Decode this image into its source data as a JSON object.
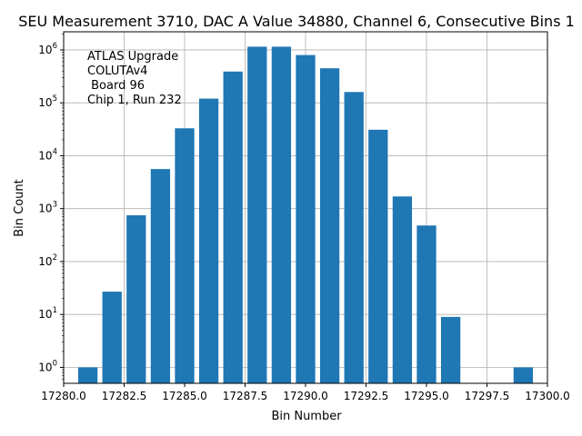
{
  "chart_data": {
    "type": "bar",
    "title": "SEU Measurement 3710, DAC A Value 34880, Channel 6, Consecutive Bins 1",
    "xlabel": "Bin Number",
    "ylabel": "Bin Count",
    "yscale": "log",
    "xlim": [
      17280,
      17300
    ],
    "ylim": [
      0.5,
      2200000
    ],
    "grid": true,
    "bar_color": "#1f77b4",
    "x": [
      17281,
      17282,
      17283,
      17284,
      17285,
      17286,
      17287,
      17288,
      17289,
      17290,
      17291,
      17292,
      17293,
      17294,
      17295,
      17296,
      17299
    ],
    "values": [
      1,
      27,
      750,
      5600,
      33000,
      120000,
      390000,
      1150000,
      1150000,
      800000,
      450000,
      160000,
      31000,
      1700,
      480,
      9,
      1
    ],
    "x_ticks": [
      17280.0,
      17282.5,
      17285.0,
      17287.5,
      17290.0,
      17292.5,
      17295.0,
      17297.5,
      17300.0
    ],
    "x_tick_labels": [
      "17280.0",
      "17282.5",
      "17285.0",
      "17287.5",
      "17290.0",
      "17292.5",
      "17295.0",
      "17297.5",
      "17300.0"
    ],
    "y_ticks": [
      1,
      10,
      100,
      1000,
      10000,
      100000,
      1000000
    ],
    "y_tick_labels": [
      {
        "base": "10",
        "exp": "0"
      },
      {
        "base": "10",
        "exp": "1"
      },
      {
        "base": "10",
        "exp": "2"
      },
      {
        "base": "10",
        "exp": "3"
      },
      {
        "base": "10",
        "exp": "4"
      },
      {
        "base": "10",
        "exp": "5"
      },
      {
        "base": "10",
        "exp": "6"
      }
    ],
    "annotation_lines": [
      "ATLAS Upgrade",
      "COLUTAv4",
      " Board 96",
      "Chip 1, Run 232"
    ]
  }
}
